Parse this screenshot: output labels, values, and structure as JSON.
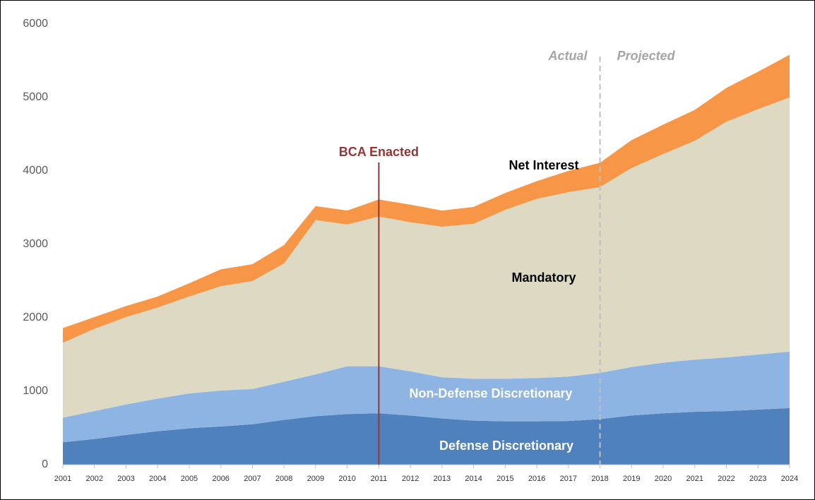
{
  "chart_data": {
    "type": "stacked_area",
    "categories": [
      "2001",
      "2002",
      "2003",
      "2004",
      "2005",
      "2006",
      "2007",
      "2008",
      "2009",
      "2010",
      "2011",
      "2012",
      "2013",
      "2014",
      "2015",
      "2016",
      "2017",
      "2018",
      "2019",
      "2020",
      "2021",
      "2022",
      "2023",
      "2024"
    ],
    "series": [
      {
        "name": "Defense Discretionary",
        "color": "#4f81bd",
        "label_color": "#ffffff",
        "values": [
          305,
          350,
          405,
          455,
          495,
          520,
          550,
          610,
          660,
          690,
          700,
          670,
          630,
          600,
          590,
          590,
          595,
          620,
          670,
          700,
          720,
          730,
          750,
          770
        ]
      },
      {
        "name": "Non-Defense Discretionary",
        "color": "#8eb4e3",
        "label_color": "#ffffff",
        "values": [
          335,
          380,
          415,
          445,
          475,
          490,
          480,
          520,
          570,
          650,
          640,
          600,
          560,
          570,
          580,
          590,
          605,
          630,
          660,
          690,
          710,
          730,
          750,
          770
        ]
      },
      {
        "name": "Mandatory",
        "color": "#ddd9c3",
        "label_color": "#000000",
        "values": [
          1020,
          1120,
          1190,
          1240,
          1320,
          1420,
          1470,
          1610,
          2100,
          1930,
          2040,
          2030,
          2050,
          2110,
          2300,
          2440,
          2510,
          2530,
          2710,
          2840,
          2980,
          3210,
          3340,
          3460
        ]
      },
      {
        "name": "Net Interest",
        "color": "#f79646",
        "label_color": "#000000",
        "values": [
          200,
          160,
          150,
          150,
          180,
          230,
          230,
          250,
          190,
          190,
          230,
          240,
          220,
          230,
          230,
          240,
          290,
          330,
          380,
          400,
          420,
          460,
          510,
          580
        ]
      }
    ],
    "ylim": [
      0,
      6000
    ],
    "yticks": [
      0,
      1000,
      2000,
      3000,
      4000,
      5000,
      6000
    ],
    "bca_line": {
      "label": "BCA Enacted",
      "x": "2011",
      "color": "#943634"
    },
    "projection_line": {
      "label_left": "Actual",
      "label_right": "Projected",
      "x": "2018",
      "color": "#bfbfbf"
    }
  }
}
